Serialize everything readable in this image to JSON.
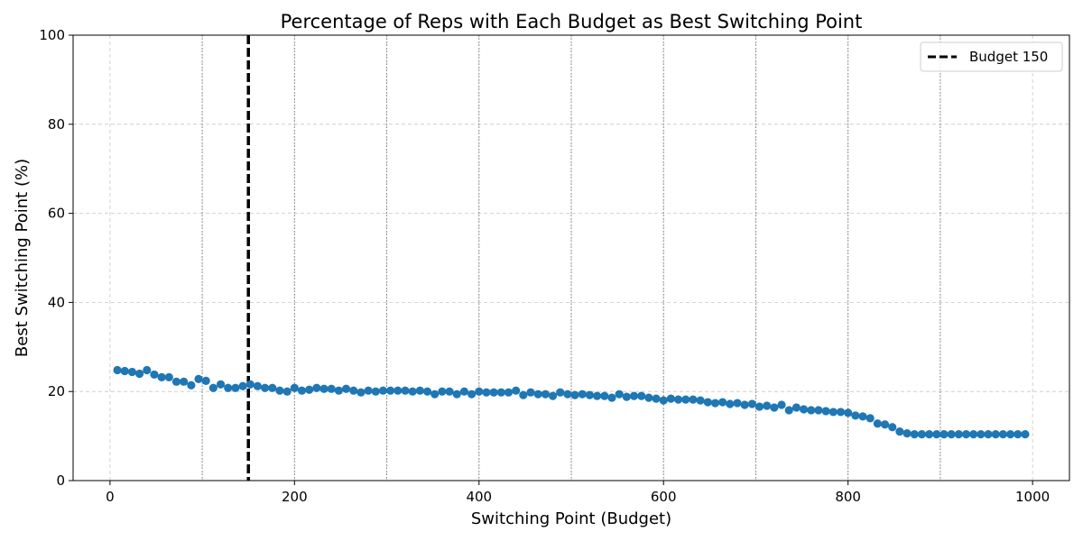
{
  "chart_data": {
    "type": "scatter",
    "title": "Percentage of Reps with Each Budget as Best Switching Point",
    "xlabel": "Switching Point (Budget)",
    "ylabel": "Best Switching Point (%)",
    "xlim": [
      -40,
      1040
    ],
    "ylim": [
      0,
      100
    ],
    "xticks": [
      "0",
      "200",
      "400",
      "600",
      "800",
      "1000"
    ],
    "yticks": [
      "0",
      "20",
      "40",
      "60",
      "80",
      "100"
    ],
    "grid": true,
    "dotted_vlines": [
      100,
      200,
      300,
      400,
      500,
      600,
      700,
      800,
      900
    ],
    "reference_line": {
      "x": 150,
      "label": "Budget 150",
      "color": "#000000"
    },
    "legend_position": "top-right",
    "series": [
      {
        "color": "#1f77b4",
        "x": [
          8,
          16,
          24,
          32,
          40,
          48,
          56,
          64,
          72,
          80,
          88,
          96,
          104,
          112,
          120,
          128,
          136,
          144,
          152,
          160,
          168,
          176,
          184,
          192,
          200,
          208,
          216,
          224,
          232,
          240,
          248,
          256,
          264,
          272,
          280,
          288,
          296,
          304,
          312,
          320,
          328,
          336,
          344,
          352,
          360,
          368,
          376,
          384,
          392,
          400,
          408,
          416,
          424,
          432,
          440,
          448,
          456,
          464,
          472,
          480,
          488,
          496,
          504,
          512,
          520,
          528,
          536,
          544,
          552,
          560,
          568,
          576,
          584,
          592,
          600,
          608,
          616,
          624,
          632,
          640,
          648,
          656,
          664,
          672,
          680,
          688,
          696,
          704,
          712,
          720,
          728,
          736,
          744,
          752,
          760,
          768,
          776,
          784,
          792,
          800,
          808,
          816,
          824,
          832,
          840,
          848,
          856,
          864,
          872,
          880,
          888,
          896,
          904,
          912,
          920,
          928,
          936,
          944,
          952,
          960,
          968,
          976,
          984,
          992
        ],
        "y": [
          24.8,
          24.6,
          24.4,
          24.0,
          24.8,
          23.8,
          23.2,
          23.2,
          22.2,
          22.2,
          21.4,
          22.8,
          22.4,
          20.8,
          21.6,
          20.8,
          20.8,
          21.2,
          21.6,
          21.2,
          20.8,
          20.8,
          20.2,
          20.0,
          20.8,
          20.2,
          20.4,
          20.8,
          20.6,
          20.6,
          20.2,
          20.6,
          20.2,
          19.8,
          20.2,
          20.0,
          20.2,
          20.2,
          20.2,
          20.2,
          20.0,
          20.2,
          20.0,
          19.4,
          20.0,
          20.0,
          19.4,
          20.0,
          19.4,
          20.0,
          19.8,
          19.8,
          19.8,
          19.8,
          20.2,
          19.2,
          19.8,
          19.4,
          19.4,
          19.0,
          19.8,
          19.4,
          19.2,
          19.4,
          19.2,
          19.0,
          19.0,
          18.6,
          19.4,
          18.8,
          19.0,
          19.0,
          18.6,
          18.4,
          18.0,
          18.4,
          18.2,
          18.2,
          18.2,
          18.0,
          17.6,
          17.4,
          17.6,
          17.2,
          17.4,
          17.0,
          17.2,
          16.6,
          16.8,
          16.4,
          17.0,
          15.8,
          16.4,
          16.0,
          15.8,
          15.8,
          15.6,
          15.4,
          15.4,
          15.2,
          14.6,
          14.4,
          14.0,
          12.8,
          12.6,
          12.0,
          11.0,
          10.6,
          10.4,
          10.4,
          10.4,
          10.4,
          10.4,
          10.4,
          10.4,
          10.4,
          10.4,
          10.4,
          10.4,
          10.4,
          10.4,
          10.4,
          10.4,
          10.4
        ]
      }
    ]
  }
}
